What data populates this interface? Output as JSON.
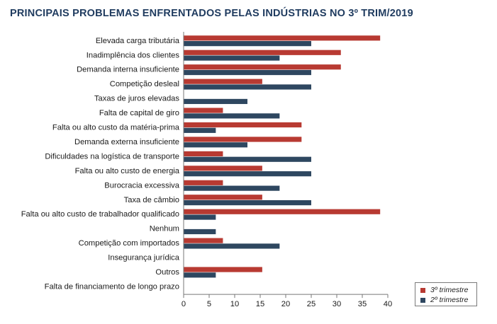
{
  "chart_data": {
    "type": "bar",
    "orientation": "horizontal",
    "title": "PRINCIPAIS PROBLEMAS ENFRENTADOS PELAS INDÚSTRIAS NO 3º TRIM/2019",
    "categories": [
      "Elevada carga tributária",
      "Inadimplência dos clientes",
      "Demanda interna insuficiente",
      "Competição desleal",
      "Taxas de juros elevadas",
      "Falta de capital de giro",
      "Falta ou alto custo da matéria-prima",
      "Demanda externa insuficiente",
      "Dificuldades na logística de transporte",
      "Falta ou alto custo de energia",
      "Burocracia excessiva",
      "Taxa de câmbio",
      "Falta ou alto custo de trabalhador qualificado",
      "Nenhum",
      "Competição com importados",
      "Insegurança jurídica",
      "Outros",
      "Falta de financiamento de longo prazo"
    ],
    "series": [
      {
        "name": "3º trimestre",
        "color": "#b83a32",
        "values": [
          38.5,
          30.8,
          30.8,
          15.4,
          0,
          7.7,
          23.1,
          23.1,
          7.7,
          15.4,
          7.7,
          15.4,
          38.5,
          0,
          7.7,
          0,
          15.4,
          0
        ]
      },
      {
        "name": "2º trimestre",
        "color": "#2e4760",
        "values": [
          25.0,
          18.8,
          25.0,
          25.0,
          12.5,
          18.8,
          6.3,
          12.5,
          25.0,
          25.0,
          18.8,
          25.0,
          6.3,
          6.3,
          18.8,
          0,
          6.3,
          0
        ]
      }
    ],
    "xticks": [
      0,
      5,
      10,
      15,
      20,
      25,
      30,
      35,
      40
    ],
    "xlim": [
      0,
      40
    ],
    "grid": false,
    "legend_position": "bottom-right"
  }
}
